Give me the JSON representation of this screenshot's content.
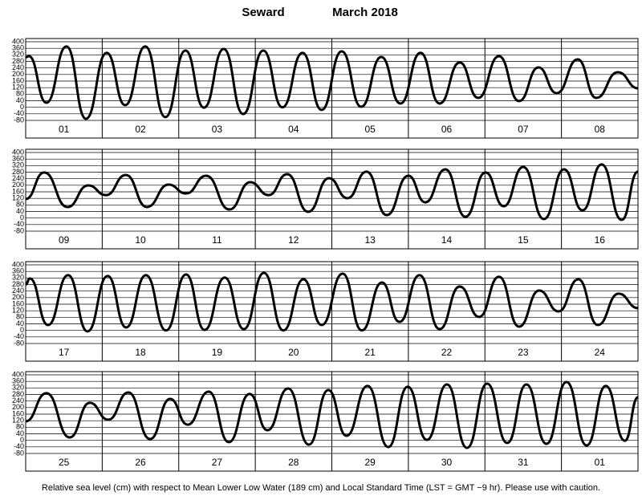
{
  "header": {
    "station": "Seward",
    "period": "March 2018"
  },
  "footnote": "Relative sea level (cm) with respect to Mean Lower Low Water (189 cm) and Local Standard Time (LST = GMT −9 hr). Please use with caution.",
  "chart_data": [
    {
      "type": "line",
      "categories": [
        "01",
        "02",
        "03",
        "04",
        "05",
        "06",
        "07",
        "08"
      ],
      "xlim": [
        0,
        192
      ],
      "ylim": [
        -80,
        400
      ],
      "yticks": [
        -80,
        -40,
        0,
        40,
        80,
        120,
        160,
        200,
        240,
        280,
        320,
        360,
        400
      ],
      "color": "#000000",
      "x": [
        0,
        1.0,
        6.5,
        12.8,
        18.9,
        25.4,
        31.2,
        37.5,
        43.8,
        50.1,
        55.9,
        62.1,
        68.2,
        74.5,
        80.5,
        86.8,
        92.8,
        99.1,
        105.2,
        111.5,
        117.5,
        123.8,
        129.8,
        136.1,
        141.9,
        148.4,
        154.7,
        160.8,
        166.5,
        173.1,
        178.9,
        185.7,
        192
      ],
      "values": [
        305,
        312,
        28,
        371,
        -70,
        332,
        13,
        371,
        -60,
        346,
        -2,
        356,
        -41,
        346,
        0,
        332,
        -16,
        341,
        3,
        307,
        23,
        332,
        23,
        273,
        57,
        312,
        38,
        243,
        86,
        292,
        57,
        214,
        116
      ]
    },
    {
      "type": "line",
      "categories": [
        "09",
        "10",
        "11",
        "12",
        "13",
        "14",
        "15",
        "16"
      ],
      "xlim": [
        0,
        192
      ],
      "ylim": [
        -80,
        400
      ],
      "yticks": [
        -80,
        -40,
        0,
        40,
        80,
        120,
        160,
        200,
        240,
        280,
        320,
        360,
        400
      ],
      "color": "#000000",
      "x": [
        0,
        5.8,
        13.1,
        19.6,
        25.2,
        31.4,
        38.0,
        44.8,
        50.3,
        56.6,
        63.9,
        70.4,
        76.2,
        82.0,
        88.6,
        95.1,
        100.9,
        106.9,
        113.2,
        120.0,
        125.3,
        131.6,
        137.9,
        144.2,
        149.9,
        156.0,
        162.5,
        168.8,
        174.6,
        180.6,
        186.9,
        192
      ],
      "values": [
        116,
        278,
        67,
        199,
        140,
        263,
        67,
        204,
        150,
        258,
        52,
        219,
        140,
        268,
        38,
        243,
        121,
        283,
        18,
        258,
        96,
        297,
        8,
        278,
        72,
        312,
        -6,
        297,
        47,
        327,
        -11,
        283
      ]
    },
    {
      "type": "line",
      "categories": [
        "17",
        "18",
        "19",
        "20",
        "21",
        "22",
        "23",
        "24"
      ],
      "xlim": [
        0,
        192
      ],
      "ylim": [
        -80,
        400
      ],
      "yticks": [
        -80,
        -40,
        0,
        40,
        80,
        120,
        160,
        200,
        240,
        280,
        320,
        360,
        400
      ],
      "color": "#000000",
      "x": [
        0,
        1.3,
        7.0,
        13.3,
        19.4,
        25.7,
        31.5,
        37.7,
        44.0,
        50.3,
        56.1,
        62.4,
        68.4,
        74.7,
        80.8,
        87.1,
        92.8,
        99.4,
        105.4,
        111.7,
        117.2,
        123.5,
        129.8,
        136.1,
        142.2,
        148.4,
        154.7,
        161.0,
        167.1,
        173.3,
        179.4,
        185.9,
        192
      ],
      "values": [
        280,
        317,
        33,
        337,
        -6,
        332,
        18,
        337,
        0,
        341,
        3,
        322,
        8,
        351,
        0,
        312,
        33,
        346,
        0,
        292,
        52,
        337,
        8,
        268,
        82,
        327,
        23,
        243,
        116,
        312,
        33,
        224,
        136
      ]
    },
    {
      "type": "line",
      "categories": [
        "25",
        "26",
        "27",
        "28",
        "29",
        "30",
        "31",
        "01"
      ],
      "xlim": [
        0,
        192
      ],
      "ylim": [
        -80,
        400
      ],
      "yticks": [
        -80,
        -40,
        0,
        40,
        80,
        120,
        160,
        200,
        240,
        280,
        320,
        360,
        400
      ],
      "color": "#000000",
      "x": [
        0,
        6.5,
        13.8,
        20.1,
        25.9,
        32.2,
        39.0,
        45.3,
        50.8,
        57.4,
        63.7,
        70.2,
        75.8,
        82.3,
        88.8,
        94.9,
        100.6,
        107.2,
        113.7,
        119.8,
        125.8,
        132.1,
        138.4,
        144.7,
        151.0,
        157.0,
        163.3,
        169.6,
        175.9,
        181.9,
        187.9,
        192
      ],
      "values": [
        116,
        288,
        18,
        229,
        126,
        292,
        8,
        253,
        96,
        297,
        -11,
        283,
        62,
        317,
        -26,
        307,
        28,
        332,
        -41,
        327,
        3,
        341,
        -46,
        346,
        -16,
        341,
        -21,
        356,
        -31,
        332,
        -2,
        263
      ]
    }
  ]
}
